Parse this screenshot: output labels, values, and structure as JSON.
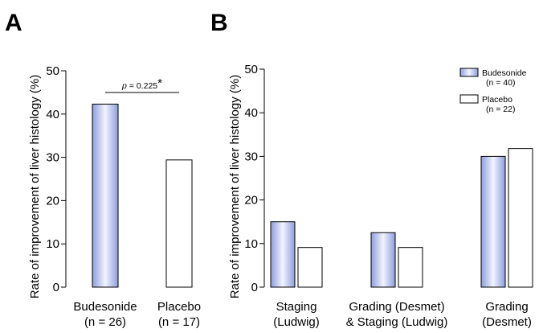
{
  "chart_data": [
    {
      "panel": "A",
      "type": "bar",
      "ylabel": "Rate of improvement of liver histology (%)",
      "ylim": [
        0,
        50
      ],
      "yticks": [
        0,
        10,
        20,
        30,
        40,
        50
      ],
      "categories": [
        [
          "Budesonide",
          "(n = 26)"
        ],
        [
          "Placebo",
          "(n = 17)"
        ]
      ],
      "values": [
        42.3,
        29.4
      ],
      "fills": [
        "gradient-blue",
        "white"
      ],
      "annotation": {
        "text": "p = 0.225",
        "mark": "*"
      },
      "grid": false
    },
    {
      "panel": "B",
      "type": "bar",
      "ylabel": "Rate of improvement of liver histology (%)",
      "ylim": [
        0,
        50
      ],
      "yticks": [
        0,
        10,
        20,
        30,
        40,
        50
      ],
      "categories": [
        [
          "Staging",
          "(Ludwig)"
        ],
        [
          "Grading (Desmet)",
          "& Staging (Ludwig)"
        ],
        [
          "Grading",
          "(Desmet)"
        ]
      ],
      "series": [
        {
          "name": "Budesonide",
          "n_label": "(n = 40)",
          "values": [
            15.0,
            12.5,
            30.0
          ],
          "fill": "gradient-blue"
        },
        {
          "name": "Placebo",
          "n_label": "(n = 22)",
          "values": [
            9.1,
            9.1,
            31.8
          ],
          "fill": "white"
        }
      ],
      "legend_position": "top-right",
      "grid": false
    }
  ],
  "colors": {
    "bar_blue_dark": "#8d9edc",
    "bar_blue_light": "#f2f4ff",
    "bar_outline": "#000000"
  }
}
